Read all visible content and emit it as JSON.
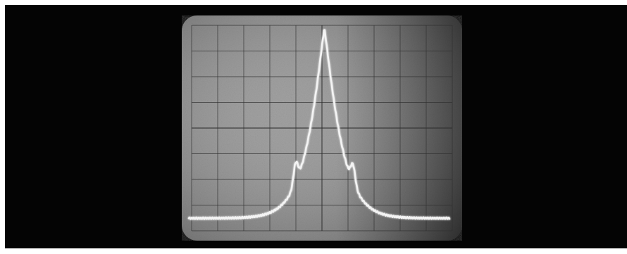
{
  "image": {
    "subject": "oscilloscope-screen-photo",
    "colors": {
      "background": "#040404",
      "screen_light": "#9a9a9a",
      "screen_dark": "#4a4a4a",
      "grid": "#2e2e2e",
      "trace": "#f4f4f4"
    },
    "graticule": {
      "divisions_x": 10,
      "divisions_y": 8
    },
    "trace": {
      "shape": "single-peak",
      "peak_x_fraction": 0.52,
      "baseline_level_fraction": 0.06,
      "peak_level_fraction": 0.97,
      "side_bumps": [
        {
          "x_fraction": 0.41,
          "level_fraction": 0.22
        },
        {
          "x_fraction": 0.63,
          "level_fraction": 0.2
        }
      ]
    }
  }
}
